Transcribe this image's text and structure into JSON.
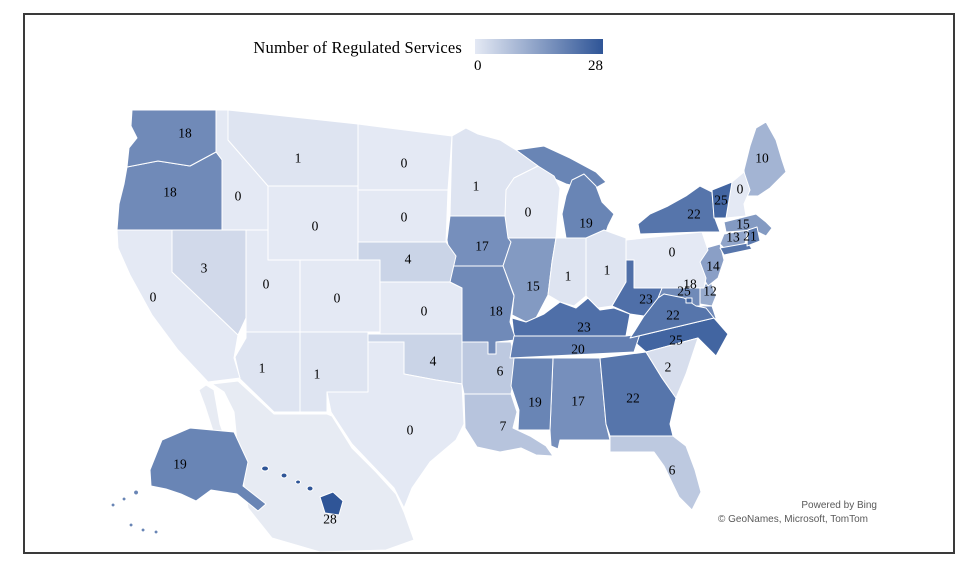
{
  "legend": {
    "title": "Number of Regulated Services",
    "min_label": "0",
    "max_label": "28"
  },
  "colors": {
    "scale_min": "#e4e9f4",
    "scale_max": "#2f5597",
    "state_border": "#ffffff",
    "label_text": "#000000",
    "background_land": "#e7ebf3",
    "frame_border": "#3a3a3a",
    "attribution_text": "#595959"
  },
  "attribution": {
    "line1": "Powered by Bing",
    "line2": "© GeoNames, Microsoft, TomTom"
  },
  "chart_data": {
    "type": "choropleth",
    "region": "United States",
    "title": "Number of Regulated Services",
    "value_range": [
      0,
      28
    ],
    "legend_position": "top",
    "states": [
      {
        "abbr": "AK",
        "name": "Alaska",
        "value": 19
      },
      {
        "abbr": "AL",
        "name": "Alabama",
        "value": 17
      },
      {
        "abbr": "AR",
        "name": "Arkansas",
        "value": 6
      },
      {
        "abbr": "AZ",
        "name": "Arizona",
        "value": 1
      },
      {
        "abbr": "CA",
        "name": "California",
        "value": 0
      },
      {
        "abbr": "CO",
        "name": "Colorado",
        "value": 0
      },
      {
        "abbr": "CT",
        "name": "Connecticut",
        "value": 13
      },
      {
        "abbr": "DC",
        "name": "District of Columbia",
        "value": 25
      },
      {
        "abbr": "DE",
        "name": "Delaware",
        "value": 12
      },
      {
        "abbr": "FL",
        "name": "Florida",
        "value": 6
      },
      {
        "abbr": "GA",
        "name": "Georgia",
        "value": 22
      },
      {
        "abbr": "HI",
        "name": "Hawaii",
        "value": 28
      },
      {
        "abbr": "IA",
        "name": "Iowa",
        "value": 17
      },
      {
        "abbr": "ID",
        "name": "Idaho",
        "value": 0
      },
      {
        "abbr": "IL",
        "name": "Illinois",
        "value": 15
      },
      {
        "abbr": "IN",
        "name": "Indiana",
        "value": 1
      },
      {
        "abbr": "KS",
        "name": "Kansas",
        "value": 0
      },
      {
        "abbr": "KY",
        "name": "Kentucky",
        "value": 23
      },
      {
        "abbr": "LA",
        "name": "Louisiana",
        "value": 7
      },
      {
        "abbr": "MA",
        "name": "Massachusetts",
        "value": 15
      },
      {
        "abbr": "MD",
        "name": "Maryland",
        "value": 18
      },
      {
        "abbr": "ME",
        "name": "Maine",
        "value": 10
      },
      {
        "abbr": "MI",
        "name": "Michigan",
        "value": 19
      },
      {
        "abbr": "MN",
        "name": "Minnesota",
        "value": 1
      },
      {
        "abbr": "MO",
        "name": "Missouri",
        "value": 18
      },
      {
        "abbr": "MS",
        "name": "Mississippi",
        "value": 19
      },
      {
        "abbr": "MT",
        "name": "Montana",
        "value": 1
      },
      {
        "abbr": "NC",
        "name": "North Carolina",
        "value": 25
      },
      {
        "abbr": "ND",
        "name": "North Dakota",
        "value": 0
      },
      {
        "abbr": "NE",
        "name": "Nebraska",
        "value": 4
      },
      {
        "abbr": "NH",
        "name": "New Hampshire",
        "value": 0
      },
      {
        "abbr": "NJ",
        "name": "New Jersey",
        "value": 14
      },
      {
        "abbr": "NM",
        "name": "New Mexico",
        "value": 1
      },
      {
        "abbr": "NV",
        "name": "Nevada",
        "value": 3
      },
      {
        "abbr": "NY",
        "name": "New York",
        "value": 22
      },
      {
        "abbr": "OH",
        "name": "Ohio",
        "value": 1
      },
      {
        "abbr": "OK",
        "name": "Oklahoma",
        "value": 4
      },
      {
        "abbr": "OR",
        "name": "Oregon",
        "value": 18
      },
      {
        "abbr": "PA",
        "name": "Pennsylvania",
        "value": 0
      },
      {
        "abbr": "RI",
        "name": "Rhode Island",
        "value": 21
      },
      {
        "abbr": "SC",
        "name": "South Carolina",
        "value": 2
      },
      {
        "abbr": "SD",
        "name": "South Dakota",
        "value": 0
      },
      {
        "abbr": "TN",
        "name": "Tennessee",
        "value": 20
      },
      {
        "abbr": "TX",
        "name": "Texas",
        "value": 0
      },
      {
        "abbr": "UT",
        "name": "Utah",
        "value": 0
      },
      {
        "abbr": "VA",
        "name": "Virginia",
        "value": 22
      },
      {
        "abbr": "VT",
        "name": "Vermont",
        "value": 25
      },
      {
        "abbr": "WA",
        "name": "Washington",
        "value": 18
      },
      {
        "abbr": "WI",
        "name": "Wisconsin",
        "value": 0
      },
      {
        "abbr": "WV",
        "name": "West Virginia",
        "value": 23
      },
      {
        "abbr": "WY",
        "name": "Wyoming",
        "value": 0
      }
    ]
  }
}
